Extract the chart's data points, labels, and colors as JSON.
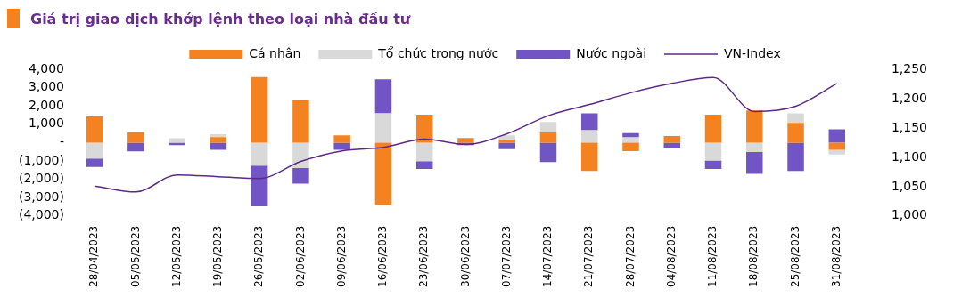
{
  "chart_data": {
    "type": "bar",
    "title": "Giá trị giao dịch khớp lệnh theo loại nhà đầu tư",
    "stacked": true,
    "categories": [
      "28/04/2023",
      "05/05/2023",
      "12/05/2023",
      "19/05/2023",
      "26/05/2023",
      "02/06/2023",
      "09/06/2023",
      "16/06/2023",
      "23/06/2023",
      "30/06/2023",
      "07/07/2023",
      "14/07/2023",
      "21/07/2023",
      "28/07/2023",
      "04/08/2023",
      "11/08/2023",
      "18/08/2023",
      "25/08/2023",
      "31/08/2023"
    ],
    "series": [
      {
        "name": "Cá nhân",
        "color": "#f58220",
        "values": [
          1430,
          570,
          0,
          300,
          3570,
          2320,
          400,
          -3400,
          1520,
          250,
          160,
          560,
          -1540,
          -460,
          360,
          1520,
          1760,
          1080,
          -390
        ]
      },
      {
        "name": "Tổ chức trong nước",
        "color": "#d9d9d9",
        "values": [
          -860,
          0,
          240,
          160,
          -1250,
          -1370,
          0,
          1600,
          -1010,
          0,
          240,
          570,
          680,
          290,
          0,
          -980,
          -510,
          520,
          -260
        ]
      },
      {
        "name": "Nước ngoài",
        "color": "#7155c4",
        "values": [
          -470,
          -480,
          -140,
          -390,
          -2230,
          -870,
          -390,
          1860,
          -430,
          -140,
          -350,
          -1060,
          920,
          230,
          -300,
          -460,
          -1190,
          -1540,
          730
        ]
      },
      {
        "name": "VN-Index",
        "type": "line",
        "axis": "y2",
        "color": "#5b2a86",
        "values": [
          1051,
          1041,
          1070,
          1067,
          1064,
          1093,
          1111,
          1117,
          1131,
          1122,
          1140,
          1171,
          1190,
          1210,
          1226,
          1236,
          1178,
          1187,
          1226
        ]
      }
    ],
    "ylim": [
      -4000,
      4000
    ],
    "yticks": [
      {
        "value": -4000,
        "label": "(4,000)"
      },
      {
        "value": -3000,
        "label": "(3,000)"
      },
      {
        "value": -2000,
        "label": "(2,000)"
      },
      {
        "value": -1000,
        "label": "(1,000)"
      },
      {
        "value": 0,
        "label": "-"
      },
      {
        "value": 1000,
        "label": "1,000"
      },
      {
        "value": 2000,
        "label": "2,000"
      },
      {
        "value": 3000,
        "label": "3,000"
      },
      {
        "value": 4000,
        "label": "4,000"
      }
    ],
    "y2lim": [
      1000,
      1250
    ],
    "y2ticks": [
      {
        "value": 1000,
        "label": "1,000"
      },
      {
        "value": 1050,
        "label": "1,050"
      },
      {
        "value": 1100,
        "label": "1,100"
      },
      {
        "value": 1150,
        "label": "1,150"
      },
      {
        "value": 1200,
        "label": "1,200"
      },
      {
        "value": 1250,
        "label": "1,250"
      }
    ],
    "legend": "top",
    "grid": false,
    "marker": "none"
  }
}
